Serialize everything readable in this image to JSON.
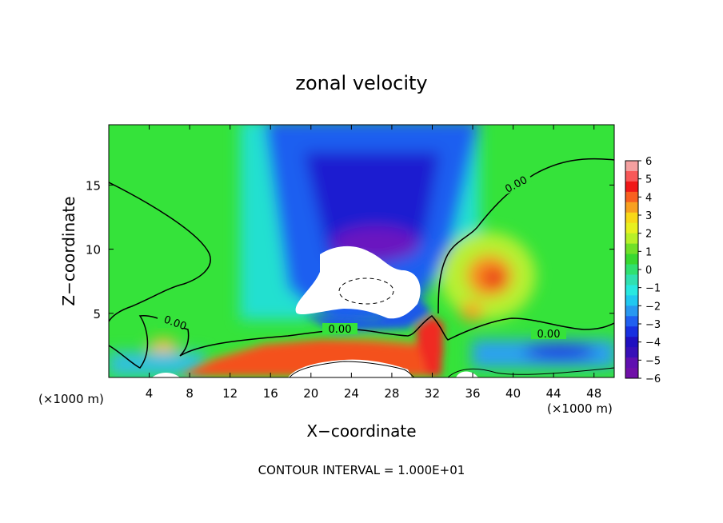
{
  "chart_data": {
    "type": "heatmap",
    "title": "zonal velocity",
    "xlabel": "X−coordinate",
    "ylabel": "Z−coordinate",
    "x_unit_left": "(×1000 m)",
    "x_unit_right": "(×1000 m)",
    "xlim": [
      0,
      50
    ],
    "ylim": [
      0,
      19.7
    ],
    "x_ticks": [
      4,
      8,
      12,
      16,
      20,
      24,
      28,
      32,
      36,
      40,
      44,
      48
    ],
    "y_ticks": [
      5,
      10,
      15
    ],
    "colorbar": {
      "ticks": [
        6,
        5,
        4,
        3,
        2,
        1,
        0,
        -1,
        -2,
        -3,
        -4,
        -5,
        -6
      ],
      "labels": [
        "6",
        "5",
        "4",
        "3",
        "2",
        "1",
        "0",
        "−1",
        "−2",
        "−3",
        "−4",
        "−5",
        "−6"
      ],
      "range": [
        -6,
        6
      ]
    },
    "contour_labels": [
      "0.00",
      "0.00",
      "0.00",
      "0.00"
    ],
    "footer": "CONTOUR INTERVAL = 1.000E+01",
    "features": [
      {
        "x": 24,
        "z": 8,
        "value": -7.5,
        "sx": 4.5,
        "sz": 2.2,
        "note": "below color range (white)"
      },
      {
        "x": 25,
        "z": 13,
        "value": -5.5,
        "sx": 5,
        "sz": 5
      },
      {
        "x": 38,
        "z": 8,
        "value": 4,
        "sx": 2.5,
        "sz": 2
      },
      {
        "x": 24,
        "z": 2,
        "value": 5,
        "sx": 8,
        "sz": 1
      },
      {
        "x": 5,
        "z": 2.5,
        "value": 2.5,
        "sx": 1.2,
        "sz": 0.8
      }
    ]
  }
}
